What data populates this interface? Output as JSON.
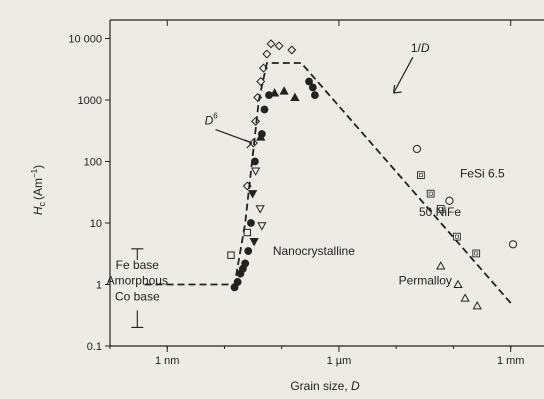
{
  "chart_data": {
    "type": "scatter",
    "xlabel": "Grain size, D",
    "ylabel": "Hc (Am⁻¹)",
    "ylabel_main": "H",
    "ylabel_sub": "c",
    "ylabel_unit": "(Am",
    "ylabel_sup": "−1",
    "ylabel_close": ")",
    "x_scale": "log",
    "y_scale": "log",
    "xlim_m": [
      1e-10,
      0.003
    ],
    "ylim": [
      0.1,
      20000
    ],
    "x_ticks": [
      {
        "value": 1e-09,
        "label": "1 nm"
      },
      {
        "value": 1e-06,
        "label": "1 µm"
      },
      {
        "value": 0.001,
        "label": "1 mm"
      }
    ],
    "y_ticks": [
      {
        "value": 0.1,
        "label": "0.1"
      },
      {
        "value": 1,
        "label": "1"
      },
      {
        "value": 10,
        "label": "10"
      },
      {
        "value": 100,
        "label": "100"
      },
      {
        "value": 1000,
        "label": "1000"
      },
      {
        "value": 10000,
        "label": "10 000"
      }
    ],
    "trend_lines": [
      {
        "style": "dashed",
        "points": [
          [
            4e-10,
            1
          ],
          [
            1.5e-08,
            1
          ],
          [
            2.3e-08,
            10
          ],
          [
            4e-08,
            1000
          ],
          [
            5.5e-08,
            4000
          ],
          [
            2.2e-07,
            4000
          ],
          [
            0.001,
            0.5
          ]
        ]
      }
    ],
    "annotations": [
      {
        "text": "1/D",
        "lead": "1/",
        "italic": "D",
        "x": 1.8e-05,
        "y": 6000
      },
      {
        "text": "D6",
        "italic": "D",
        "sup": "6",
        "x": 4.5e-09,
        "y": 400
      },
      {
        "text": "FeSi 6.5",
        "x": 0.00013,
        "y": 55
      },
      {
        "text": "50 NiFe",
        "x": 2.5e-05,
        "y": 13
      },
      {
        "text": "Nanocrystalline",
        "x": 7e-08,
        "y": 3
      },
      {
        "text": "Permalloy",
        "x": 1.1e-05,
        "y": 1
      },
      {
        "text": "Fe base",
        "x": 3e-10,
        "y": 1.8
      },
      {
        "text": "Amorphous",
        "x": 3e-10,
        "y": 1
      },
      {
        "text": "Co base",
        "x": 3e-10,
        "y": 0.55
      }
    ],
    "series": [
      {
        "marker": "open-diamond",
        "points": [
          [
            2.5e-08,
            40
          ],
          [
            3.2e-08,
            200
          ],
          [
            3.5e-08,
            450
          ],
          [
            3.8e-08,
            1100
          ],
          [
            4.3e-08,
            2000
          ],
          [
            4.8e-08,
            3300
          ],
          [
            5.5e-08,
            5600
          ],
          [
            6.5e-08,
            8200
          ],
          [
            9e-08,
            7600
          ],
          [
            1.5e-07,
            6500
          ]
        ]
      },
      {
        "marker": "filled-circle",
        "points": [
          [
            1.5e-08,
            0.9
          ],
          [
            1.7e-08,
            1.1
          ],
          [
            1.9e-08,
            1.5
          ],
          [
            2.1e-08,
            1.8
          ],
          [
            2.3e-08,
            2.2
          ],
          [
            2.6e-08,
            3.5
          ],
          [
            2.9e-08,
            10
          ],
          [
            3.4e-08,
            100
          ],
          [
            4.5e-08,
            280
          ],
          [
            5e-08,
            700
          ],
          [
            6e-08,
            1200
          ],
          [
            3e-07,
            2000
          ],
          [
            3.5e-07,
            1600
          ],
          [
            3.8e-07,
            1200
          ]
        ]
      },
      {
        "marker": "filled-triangle",
        "points": [
          [
            4.3e-08,
            250
          ],
          [
            7.5e-08,
            1300
          ],
          [
            1.1e-07,
            1400
          ],
          [
            1.7e-07,
            1100
          ]
        ]
      },
      {
        "marker": "filled-triangle-down",
        "points": [
          [
            3.1e-08,
            30
          ],
          [
            3.3e-08,
            5
          ]
        ]
      },
      {
        "marker": "open-triangle-down",
        "points": [
          [
            3.5e-08,
            70
          ],
          [
            4.2e-08,
            17
          ],
          [
            4.5e-08,
            9
          ]
        ]
      },
      {
        "marker": "open-square",
        "points": [
          [
            1.3e-08,
            3
          ],
          [
            2.5e-08,
            7
          ]
        ]
      },
      {
        "marker": "boxed-square",
        "points": [
          [
            2.7e-05,
            60
          ],
          [
            4e-05,
            30
          ],
          [
            6e-05,
            17
          ],
          [
            0.000115,
            6
          ],
          [
            0.00025,
            3.2
          ]
        ]
      },
      {
        "marker": "open-circle",
        "points": [
          [
            2.3e-05,
            160
          ],
          [
            8.5e-05,
            23
          ],
          [
            0.0011,
            4.5
          ]
        ]
      },
      {
        "marker": "open-triangle",
        "points": [
          [
            6e-05,
            2
          ],
          [
            0.00012,
            1
          ],
          [
            0.00016,
            0.6
          ],
          [
            0.00026,
            0.45
          ]
        ]
      }
    ]
  }
}
